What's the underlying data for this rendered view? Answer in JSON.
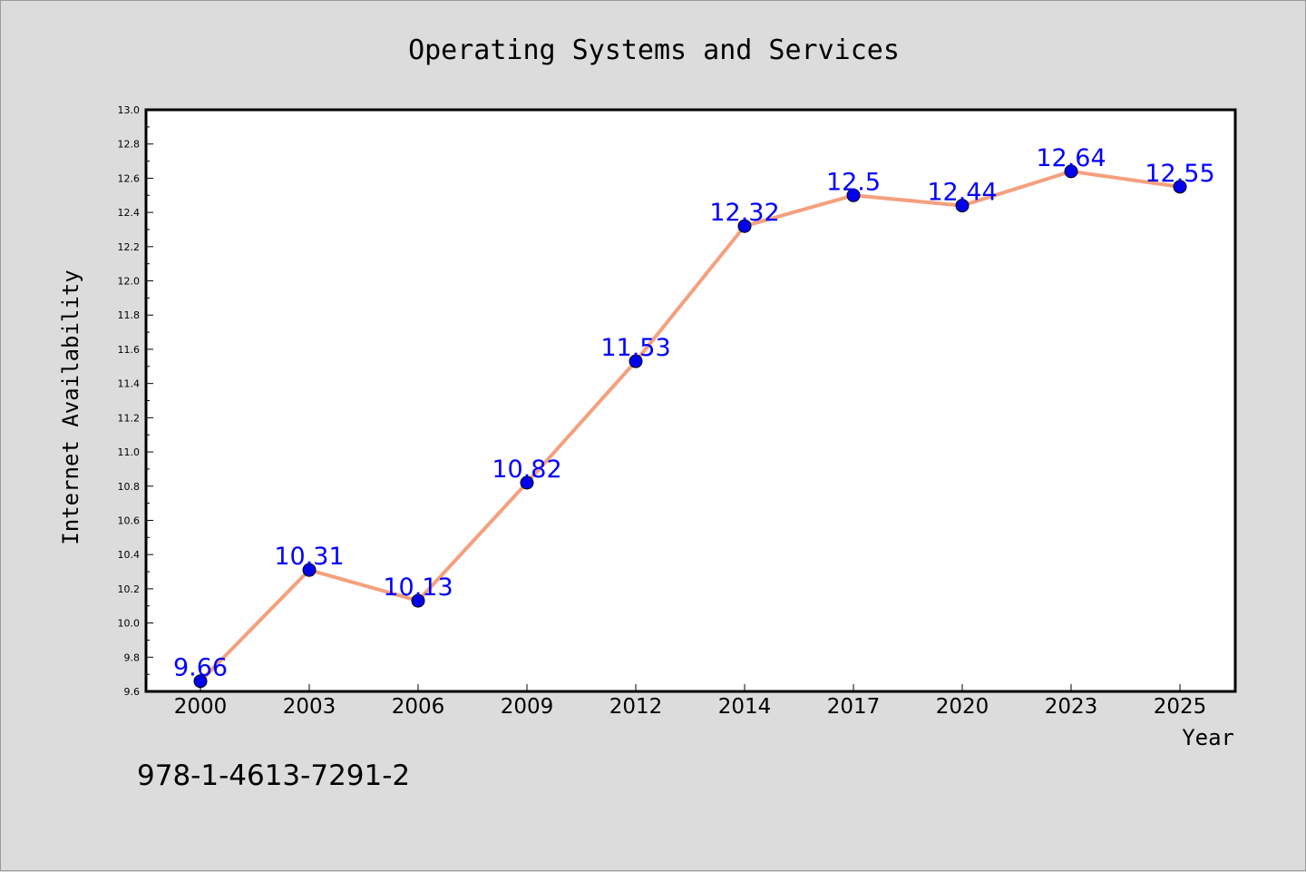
{
  "chart_data": {
    "type": "line",
    "title": "Operating Systems and Services",
    "xlabel": "Year",
    "ylabel": "Internet Availability",
    "categories": [
      "2000",
      "2003",
      "2006",
      "2009",
      "2012",
      "2014",
      "2017",
      "2020",
      "2023",
      "2025"
    ],
    "series": [
      {
        "values": [
          9.66,
          10.31,
          10.13,
          10.82,
          11.53,
          12.32,
          12.5,
          12.44,
          12.64,
          12.55
        ],
        "data_labels": [
          "9.66",
          "10.31",
          "10.13",
          "10.82",
          "11.53",
          "12.32",
          "12.5",
          "12.44",
          "12.64",
          "12.55"
        ],
        "line_color": "#f4a07e",
        "marker_color": "#0000ee"
      }
    ],
    "ylim": [
      9.6,
      13.0
    ],
    "yticks": [
      "9.6",
      "9.8",
      "10.0",
      "10.2",
      "10.4",
      "10.6",
      "10.8",
      "11.0",
      "11.2",
      "11.4",
      "11.6",
      "11.8",
      "12.0",
      "12.2",
      "12.4",
      "12.6",
      "12.8",
      "13.0"
    ],
    "grid": false,
    "legend": "none",
    "data_label_color": "#0000ff"
  },
  "annotation": {
    "isbn": "978-1-4613-7291-2"
  }
}
